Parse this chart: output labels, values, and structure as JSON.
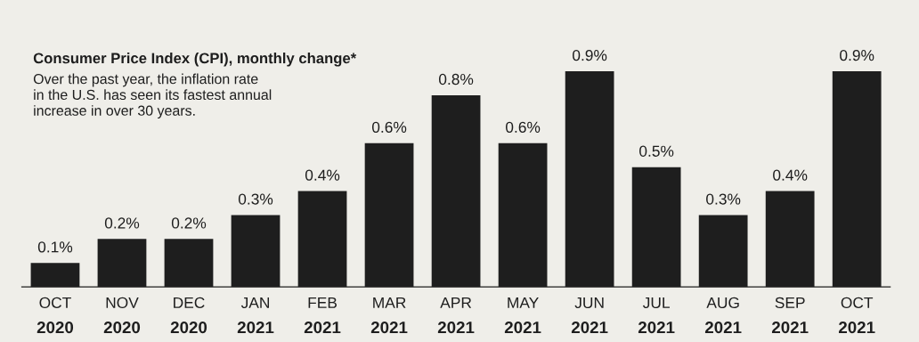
{
  "chart_data": {
    "type": "bar",
    "title": "Consumer Price Index (CPI), monthly change*",
    "subtitle": "Over the past year, the inflation rate\nin the U.S. has seen its fastest annual\nincrease in over 30 years.",
    "categories": [
      "OCT\n2020",
      "NOV\n2020",
      "DEC\n2020",
      "JAN\n2021",
      "FEB\n2021",
      "MAR\n2021",
      "APR\n2021",
      "MAY\n2021",
      "JUN\n2021",
      "JUL\n2021",
      "AUG\n2021",
      "SEP\n2021",
      "OCT\n2021"
    ],
    "values": [
      0.1,
      0.2,
      0.2,
      0.3,
      0.4,
      0.6,
      0.8,
      0.6,
      0.9,
      0.5,
      0.3,
      0.4,
      0.9
    ],
    "value_labels": [
      "0.1%",
      "0.2%",
      "0.2%",
      "0.3%",
      "0.4%",
      "0.6%",
      "0.8%",
      "0.6%",
      "0.9%",
      "0.5%",
      "0.3%",
      "0.4%",
      "0.9%"
    ],
    "color": "#1e1e1e",
    "tick_labels": "x",
    "grid": false,
    "legend": false
  }
}
